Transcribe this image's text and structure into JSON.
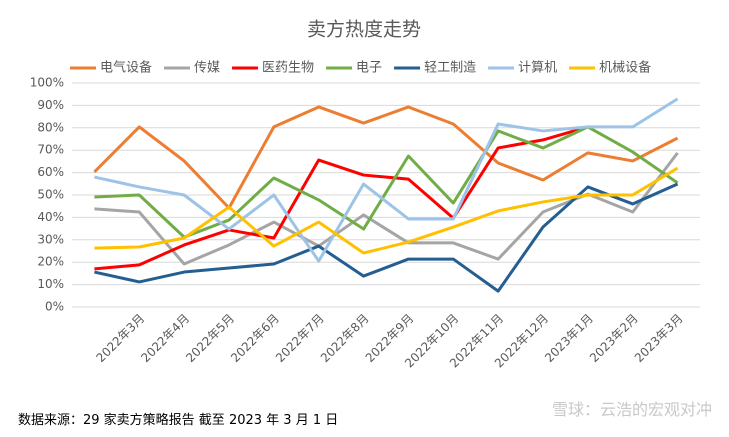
{
  "chart_data": {
    "type": "line",
    "title": "卖方热度走势",
    "categories": [
      null,
      "2022年3月",
      "2022年4月",
      "2022年5月",
      "2022年6月",
      "2022年7月",
      "2022年8月",
      "2022年9月",
      "2022年10月",
      "2022年11月",
      "2022年12月",
      "2023年1月",
      "2023年2月",
      "2023年3月"
    ],
    "series": [
      {
        "name": "电气设备",
        "color": "#ED7D31",
        "values": [
          60.3,
          80.4,
          65.2,
          44.2,
          80.4,
          89.3,
          82.1,
          89.3,
          81.7,
          64.3,
          56.7,
          68.8,
          65.2,
          75.4
        ]
      },
      {
        "name": "传媒",
        "color": "#A5A5A5",
        "values": [
          43.8,
          42.4,
          19.2,
          27.7,
          37.9,
          27.2,
          41.1,
          28.6,
          28.6,
          21.4,
          42.4,
          50.4,
          42.4,
          68.8
        ]
      },
      {
        "name": "医药生物",
        "color": "#FF0000",
        "values": [
          17,
          18.8,
          27.7,
          34.4,
          30.8,
          65.6,
          58.9,
          57.1,
          39.7,
          71,
          74.6,
          80.4,
          null,
          null
        ]
      },
      {
        "name": "电子",
        "color": "#70AD47",
        "values": [
          49.1,
          50,
          31.2,
          38.8,
          57.6,
          47.8,
          34.8,
          67.4,
          46.4,
          78.6,
          71,
          80.4,
          69.2,
          55.4
        ]
      },
      {
        "name": "轻工制造",
        "color": "#255E91",
        "values": [
          15.6,
          11.2,
          15.6,
          17.4,
          19.2,
          27.2,
          13.8,
          21.4,
          21.4,
          7.1,
          35.7,
          53.6,
          46,
          54.9
        ]
      },
      {
        "name": "计算机",
        "color": "#9DC3E6",
        "values": [
          58,
          53.6,
          50,
          34.8,
          50,
          20.5,
          54.9,
          39.3,
          39.3,
          81.7,
          78.6,
          80.4,
          80.4,
          92.9
        ]
      },
      {
        "name": "机械设备",
        "color": "#FFC000",
        "values": [
          26.3,
          26.8,
          30.8,
          44.6,
          27.2,
          37.9,
          24.1,
          29,
          35.7,
          42.9,
          46.9,
          50,
          50,
          62
        ]
      }
    ],
    "ylim": [
      0,
      100
    ],
    "yticks": [
      {
        "value": 0,
        "label": "0%"
      },
      {
        "value": 10,
        "label": "10%"
      },
      {
        "value": 20,
        "label": "20%"
      },
      {
        "value": 30,
        "label": "30%"
      },
      {
        "value": 40,
        "label": "40%"
      },
      {
        "value": 50,
        "label": "50%"
      },
      {
        "value": 60,
        "label": "60%"
      },
      {
        "value": 70,
        "label": "70%"
      },
      {
        "value": 80,
        "label": "80%"
      },
      {
        "value": 90,
        "label": "90%"
      },
      {
        "value": 100,
        "label": "100%"
      }
    ],
    "grid": true,
    "legend": "top"
  },
  "footer": {
    "source": "数据来源：29 家卖方策略报告 截至 2023 年 3 月 1 日",
    "watermark": "雪球：云浩的宏观对冲"
  }
}
